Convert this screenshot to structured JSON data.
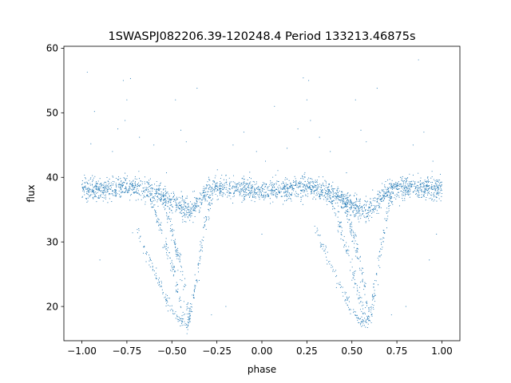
{
  "chart_data": {
    "type": "scatter",
    "title": "1SWASPJ082206.39-120248.4 Period 133213.46875s",
    "xlabel": "phase",
    "ylabel": "flux",
    "xlim": [
      -1.1,
      1.1
    ],
    "ylim": [
      14.7,
      60.3
    ],
    "x_ticks": [
      -1.0,
      -0.75,
      -0.5,
      -0.25,
      0.0,
      0.25,
      0.5,
      0.75,
      1.0
    ],
    "x_tick_labels": [
      "−1.00",
      "−0.75",
      "−0.50",
      "−0.25",
      "0.00",
      "0.25",
      "0.50",
      "0.75",
      "1.00"
    ],
    "y_ticks": [
      20,
      30,
      40,
      50,
      60
    ],
    "y_tick_labels": [
      "20",
      "30",
      "40",
      "50",
      "60"
    ],
    "grid": false,
    "legend": "none",
    "marker_color": "#1f77b4",
    "light_curve": {
      "phase": [
        -1.0,
        -0.9,
        -0.8,
        -0.75,
        -0.7,
        -0.65,
        -0.6,
        -0.55,
        -0.5,
        -0.47,
        -0.44,
        -0.42,
        -0.4,
        -0.38,
        -0.35,
        -0.32,
        -0.3,
        -0.25,
        -0.2,
        -0.1,
        0.0,
        0.1,
        0.2,
        0.25,
        0.3,
        0.35,
        0.4,
        0.45,
        0.5,
        0.53,
        0.56,
        0.58,
        0.6,
        0.62,
        0.65,
        0.68,
        0.7,
        0.75,
        0.8,
        0.9,
        1.0
      ],
      "flux": [
        38.0,
        38.1,
        38.4,
        38.7,
        38.5,
        38.1,
        37.6,
        37.0,
        36.4,
        35.9,
        35.3,
        35.0,
        34.8,
        35.2,
        36.2,
        37.3,
        37.9,
        38.2,
        38.3,
        38.2,
        38.0,
        38.1,
        38.4,
        38.6,
        38.3,
        37.8,
        37.3,
        36.5,
        35.8,
        35.3,
        35.0,
        34.8,
        34.9,
        35.4,
        36.6,
        37.6,
        38.0,
        38.2,
        38.4,
        38.3,
        38.2
      ]
    },
    "eclipse_branches": [
      {
        "phase": [
          -0.7,
          -0.6,
          -0.55,
          -0.5,
          -0.47,
          -0.44,
          -0.42
        ],
        "flux": [
          32.0,
          25.5,
          22.5,
          19.5,
          18.3,
          17.5,
          17.2
        ]
      },
      {
        "phase": [
          -0.62,
          -0.55,
          -0.5,
          -0.46,
          -0.43
        ],
        "flux": [
          37.0,
          31.0,
          26.0,
          21.5,
          18.0
        ]
      },
      {
        "phase": [
          -0.55,
          -0.5,
          -0.45,
          -0.42,
          -0.4
        ],
        "flux": [
          37.0,
          32.0,
          26.0,
          21.0,
          17.5
        ]
      },
      {
        "phase": [
          -0.42,
          -0.4,
          -0.37,
          -0.34,
          -0.31,
          -0.28
        ],
        "flux": [
          17.0,
          18.5,
          23.0,
          28.5,
          33.5,
          37.0
        ]
      },
      {
        "phase": [
          0.3,
          0.4,
          0.45,
          0.5,
          0.53,
          0.56,
          0.58
        ],
        "flux": [
          32.0,
          25.5,
          22.5,
          19.5,
          18.3,
          17.5,
          17.2
        ]
      },
      {
        "phase": [
          0.38,
          0.45,
          0.5,
          0.54,
          0.57
        ],
        "flux": [
          37.0,
          31.0,
          26.0,
          21.5,
          18.0
        ]
      },
      {
        "phase": [
          0.45,
          0.5,
          0.55,
          0.58,
          0.6
        ],
        "flux": [
          37.0,
          32.0,
          26.0,
          21.0,
          17.5
        ]
      },
      {
        "phase": [
          0.58,
          0.6,
          0.63,
          0.66,
          0.69,
          0.72
        ],
        "flux": [
          17.0,
          18.5,
          23.0,
          28.5,
          33.5,
          37.0
        ]
      }
    ],
    "outliers": [
      {
        "phase": -0.97,
        "flux": 56.3
      },
      {
        "phase": -0.95,
        "flux": 45.2
      },
      {
        "phase": -0.93,
        "flux": 50.2
      },
      {
        "phase": -0.9,
        "flux": 27.2
      },
      {
        "phase": -0.83,
        "flux": 44.0
      },
      {
        "phase": -0.8,
        "flux": 47.5
      },
      {
        "phase": -0.77,
        "flux": 55.0
      },
      {
        "phase": -0.75,
        "flux": 52.0
      },
      {
        "phase": -0.73,
        "flux": 55.3
      },
      {
        "phase": -0.76,
        "flux": 48.8
      },
      {
        "phase": -0.68,
        "flux": 46.2
      },
      {
        "phase": -0.6,
        "flux": 45.0
      },
      {
        "phase": -0.53,
        "flux": 40.7
      },
      {
        "phase": -0.48,
        "flux": 52.0
      },
      {
        "phase": -0.45,
        "flux": 47.3
      },
      {
        "phase": -0.36,
        "flux": 53.8
      },
      {
        "phase": -0.28,
        "flux": 18.7
      },
      {
        "phase": -0.2,
        "flux": 20.0
      },
      {
        "phase": -0.16,
        "flux": 45.0
      },
      {
        "phase": -0.1,
        "flux": 47.0
      },
      {
        "phase": -0.03,
        "flux": 44.0
      },
      {
        "phase": 0.02,
        "flux": 42.5
      },
      {
        "phase": 0.0,
        "flux": 31.2
      },
      {
        "phase": 0.07,
        "flux": 51.0
      },
      {
        "phase": 0.14,
        "flux": 44.5
      },
      {
        "phase": 0.2,
        "flux": 47.5
      },
      {
        "phase": 0.23,
        "flux": 55.4
      },
      {
        "phase": 0.25,
        "flux": 52.0
      },
      {
        "phase": 0.27,
        "flux": 48.8
      },
      {
        "phase": 0.26,
        "flux": 55.0
      },
      {
        "phase": 0.32,
        "flux": 46.2
      },
      {
        "phase": 0.38,
        "flux": 44.0
      },
      {
        "phase": 0.47,
        "flux": 40.7
      },
      {
        "phase": 0.52,
        "flux": 52.0
      },
      {
        "phase": 0.55,
        "flux": 47.3
      },
      {
        "phase": 0.64,
        "flux": 53.8
      },
      {
        "phase": 0.72,
        "flux": 18.7
      },
      {
        "phase": 0.8,
        "flux": 20.0
      },
      {
        "phase": 0.84,
        "flux": 45.0
      },
      {
        "phase": 0.87,
        "flux": 58.2
      },
      {
        "phase": 0.9,
        "flux": 47.0
      },
      {
        "phase": 0.95,
        "flux": 42.5
      },
      {
        "phase": 0.97,
        "flux": 31.2
      },
      {
        "phase": 0.93,
        "flux": 27.2
      },
      {
        "phase": -0.42,
        "flux": 45.5
      },
      {
        "phase": 0.58,
        "flux": 45.5
      }
    ]
  }
}
